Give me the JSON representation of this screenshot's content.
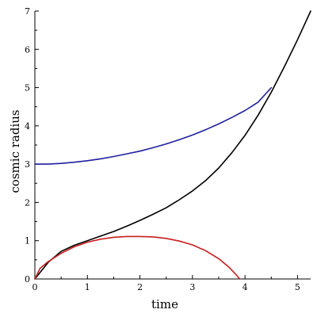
{
  "chart_data": {
    "type": "line",
    "xlabel": "time",
    "ylabel": "cosmic radius",
    "xlim": [
      0,
      5.25
    ],
    "ylim": [
      0,
      7
    ],
    "x_ticks": [
      0,
      1,
      2,
      3,
      4,
      5
    ],
    "y_ticks": [
      0,
      1,
      2,
      3,
      4,
      5,
      6,
      7
    ],
    "grid": false,
    "legend": "none",
    "series": [
      {
        "color": "#000000",
        "x": [
          0,
          0.25,
          0.5,
          0.75,
          1.0,
          1.25,
          1.5,
          1.75,
          2.0,
          2.25,
          2.5,
          2.75,
          3.0,
          3.25,
          3.5,
          3.75,
          4.0,
          4.25,
          4.5,
          4.75,
          5.0,
          5.25
        ],
        "y": [
          0,
          0.43,
          0.72,
          0.88,
          1.0,
          1.12,
          1.24,
          1.38,
          1.53,
          1.69,
          1.86,
          2.07,
          2.3,
          2.57,
          2.9,
          3.3,
          3.75,
          4.28,
          4.88,
          5.55,
          6.25,
          7.0
        ]
      },
      {
        "color": "#1f1fa0",
        "x": [
          0,
          0.25,
          0.5,
          0.75,
          1.0,
          1.25,
          1.5,
          1.75,
          2.0,
          2.25,
          2.5,
          2.75,
          3.0,
          3.25,
          3.5,
          3.75,
          4.0,
          4.25,
          4.5
        ],
        "y": [
          3.0,
          3.0,
          3.02,
          3.05,
          3.09,
          3.14,
          3.2,
          3.27,
          3.34,
          3.43,
          3.53,
          3.64,
          3.76,
          3.9,
          4.05,
          4.22,
          4.4,
          4.62,
          5.0
        ]
      },
      {
        "color": "#c81e1e",
        "x": [
          0,
          0.1,
          0.25,
          0.5,
          0.75,
          1.0,
          1.25,
          1.5,
          1.75,
          2.0,
          2.25,
          2.5,
          2.75,
          3.0,
          3.25,
          3.5,
          3.7,
          3.85,
          3.9
        ],
        "y": [
          0,
          0.28,
          0.45,
          0.67,
          0.84,
          0.96,
          1.04,
          1.09,
          1.11,
          1.11,
          1.1,
          1.06,
          0.99,
          0.89,
          0.74,
          0.53,
          0.3,
          0.08,
          0
        ]
      }
    ]
  }
}
